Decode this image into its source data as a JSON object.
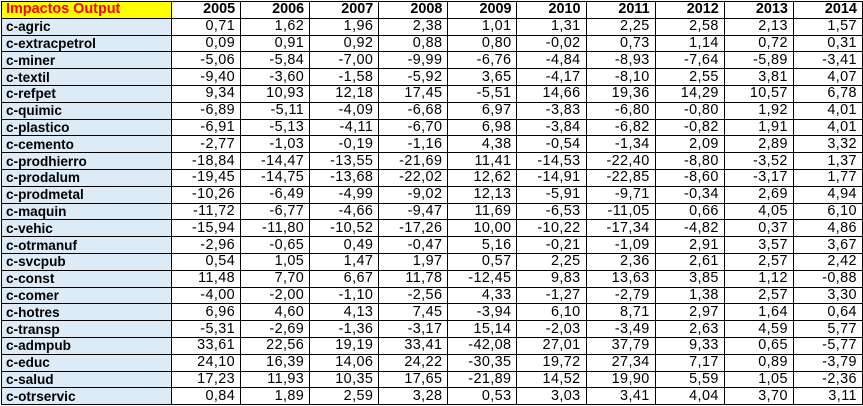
{
  "table": {
    "corner_label": "Impactos Output",
    "years": [
      "2005",
      "2006",
      "2007",
      "2008",
      "2009",
      "2010",
      "2011",
      "2012",
      "2013",
      "2014"
    ],
    "rows": [
      {
        "label": "c-agric",
        "values": [
          "0,71",
          "1,62",
          "1,96",
          "2,38",
          "1,01",
          "1,31",
          "2,25",
          "2,58",
          "2,13",
          "1,57"
        ]
      },
      {
        "label": "c-extracpetrol",
        "values": [
          "0,09",
          "0,91",
          "0,92",
          "0,88",
          "0,80",
          "-0,02",
          "0,73",
          "1,14",
          "0,72",
          "0,31"
        ]
      },
      {
        "label": "c-miner",
        "values": [
          "-5,06",
          "-5,84",
          "-7,00",
          "-9,99",
          "-6,76",
          "-4,84",
          "-8,93",
          "-7,64",
          "-5,89",
          "-3,41"
        ]
      },
      {
        "label": "c-textil",
        "values": [
          "-9,40",
          "-3,60",
          "-1,58",
          "-5,92",
          "3,65",
          "-4,17",
          "-8,10",
          "2,55",
          "3,81",
          "4,07"
        ]
      },
      {
        "label": "c-refpet",
        "values": [
          "9,34",
          "10,93",
          "12,18",
          "17,45",
          "-5,51",
          "14,66",
          "19,36",
          "14,29",
          "10,57",
          "6,78"
        ]
      },
      {
        "label": "c-quimic",
        "values": [
          "-6,89",
          "-5,11",
          "-4,09",
          "-6,68",
          "6,97",
          "-3,83",
          "-6,80",
          "-0,80",
          "1,92",
          "4,01"
        ]
      },
      {
        "label": "c-plastico",
        "values": [
          "-6,91",
          "-5,13",
          "-4,11",
          "-6,70",
          "6,98",
          "-3,84",
          "-6,82",
          "-0,82",
          "1,91",
          "4,01"
        ]
      },
      {
        "label": "c-cemento",
        "values": [
          "-2,77",
          "-1,03",
          "-0,19",
          "-1,16",
          "4,38",
          "-0,54",
          "-1,34",
          "2,09",
          "2,89",
          "3,32"
        ]
      },
      {
        "label": "c-prodhierro",
        "values": [
          "-18,84",
          "-14,47",
          "-13,55",
          "-21,69",
          "11,41",
          "-14,53",
          "-22,40",
          "-8,80",
          "-3,52",
          "1,37"
        ]
      },
      {
        "label": "c-prodalum",
        "values": [
          "-19,45",
          "-14,75",
          "-13,68",
          "-22,02",
          "12,62",
          "-14,91",
          "-22,85",
          "-8,60",
          "-3,17",
          "1,77"
        ]
      },
      {
        "label": "c-prodmetal",
        "values": [
          "-10,26",
          "-6,49",
          "-4,99",
          "-9,02",
          "12,13",
          "-5,91",
          "-9,71",
          "-0,34",
          "2,69",
          "4,94"
        ]
      },
      {
        "label": "c-maquin",
        "values": [
          "-11,72",
          "-6,77",
          "-4,66",
          "-9,47",
          "11,69",
          "-6,53",
          "-11,05",
          "0,66",
          "4,05",
          "6,10"
        ]
      },
      {
        "label": "c-vehic",
        "values": [
          "-15,94",
          "-11,80",
          "-10,52",
          "-17,26",
          "10,00",
          "-10,22",
          "-17,34",
          "-4,82",
          "0,37",
          "4,86"
        ]
      },
      {
        "label": "c-otrmanuf",
        "values": [
          "-2,96",
          "-0,65",
          "0,49",
          "-0,47",
          "5,16",
          "-0,21",
          "-1,09",
          "2,91",
          "3,57",
          "3,67"
        ]
      },
      {
        "label": "c-svcpub",
        "values": [
          "0,54",
          "1,05",
          "1,47",
          "1,97",
          "0,57",
          "2,25",
          "2,36",
          "2,61",
          "2,57",
          "2,42"
        ]
      },
      {
        "label": "c-const",
        "values": [
          "11,48",
          "7,70",
          "6,67",
          "11,78",
          "-12,45",
          "9,83",
          "13,63",
          "3,85",
          "1,12",
          "-0,88"
        ]
      },
      {
        "label": "c-comer",
        "values": [
          "-4,00",
          "-2,00",
          "-1,10",
          "-2,56",
          "4,33",
          "-1,27",
          "-2,79",
          "1,38",
          "2,57",
          "3,30"
        ]
      },
      {
        "label": "c-hotres",
        "values": [
          "6,96",
          "4,60",
          "4,13",
          "7,45",
          "-3,94",
          "6,10",
          "8,71",
          "2,97",
          "1,64",
          "0,64"
        ]
      },
      {
        "label": "c-transp",
        "values": [
          "-5,31",
          "-2,69",
          "-1,36",
          "-3,17",
          "15,14",
          "-2,03",
          "-3,49",
          "2,63",
          "4,59",
          "5,77"
        ]
      },
      {
        "label": "c-admpub",
        "values": [
          "33,61",
          "22,56",
          "19,19",
          "33,41",
          "-42,08",
          "27,01",
          "37,79",
          "9,33",
          "0,65",
          "-5,77"
        ]
      },
      {
        "label": "c-educ",
        "values": [
          "24,10",
          "16,39",
          "14,06",
          "24,22",
          "-30,35",
          "19,72",
          "27,34",
          "7,17",
          "0,89",
          "-3,79"
        ]
      },
      {
        "label": "c-salud",
        "values": [
          "17,23",
          "11,93",
          "10,35",
          "17,65",
          "-21,89",
          "14,52",
          "19,90",
          "5,59",
          "1,05",
          "-2,36"
        ]
      },
      {
        "label": "c-otrservic",
        "values": [
          "0,84",
          "1,89",
          "2,59",
          "3,28",
          "0,53",
          "3,03",
          "3,41",
          "4,04",
          "3,70",
          "3,11"
        ]
      }
    ]
  }
}
